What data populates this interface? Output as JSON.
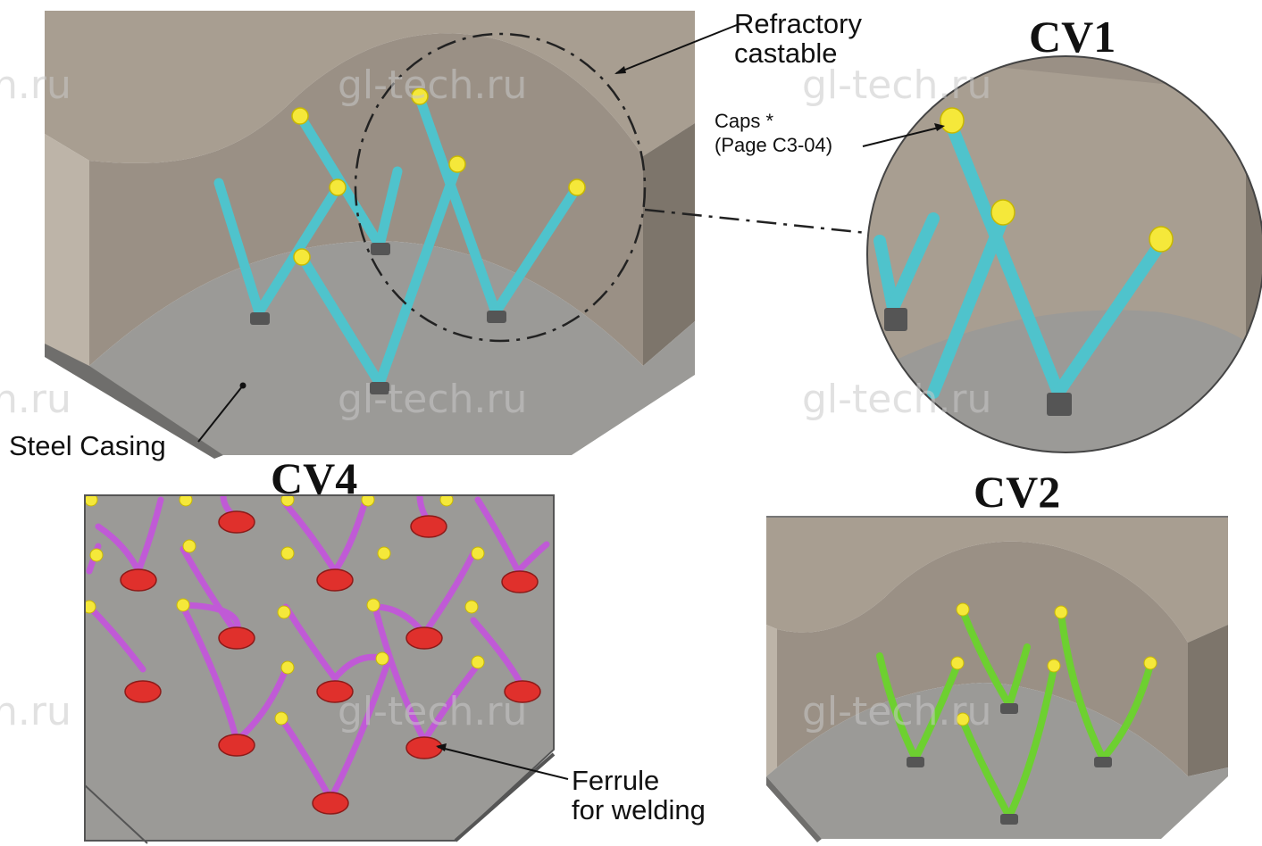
{
  "views": {
    "cv1_title": "CV1",
    "cv2_title": "CV2",
    "cv4_title": "CV4"
  },
  "labels": {
    "refractory_line1": "Refractory",
    "refractory_line2": "castable",
    "caps_line1": "Caps *",
    "caps_line2": "(Page C3-04)",
    "steel_casing": "Steel Casing",
    "ferrule_line1": "Ferrule",
    "ferrule_line2": "for welding"
  },
  "watermark": "gl-tech.ru",
  "watermark_partial": "h.ru",
  "colors": {
    "refractory": "#a89e91",
    "floor": "#9b9a97",
    "anchor_v": "#5fd6dd",
    "anchor_wavy_cv2": "#7fe03a",
    "anchor_wavy_cv4": "#c05ad6",
    "cap": "#f5e83a",
    "ferrule": "#e0302c"
  }
}
